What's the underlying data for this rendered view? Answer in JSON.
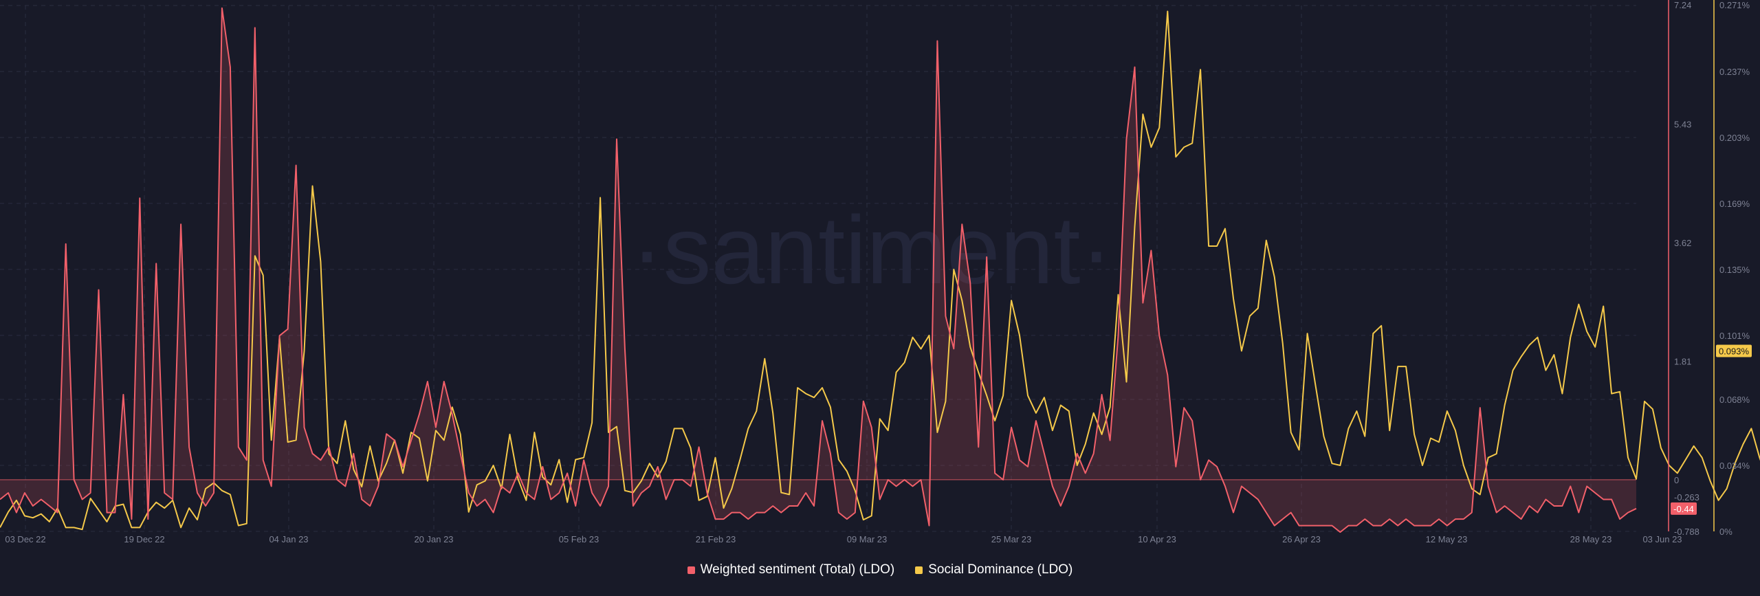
{
  "watermark": "·santiment·",
  "colors": {
    "background": "#181a28",
    "grid": "#2a2d40",
    "sentiment": "#f2606a",
    "dominance": "#f5c94a",
    "axis_text": "#7e8294"
  },
  "chart_data": {
    "type": "line",
    "x_tick_labels": [
      "03 Dec 22",
      "19 Dec 22",
      "04 Jan 23",
      "20 Jan 23",
      "05 Feb 23",
      "21 Feb 23",
      "09 Mar 23",
      "25 Mar 23",
      "10 Apr 23",
      "26 Apr 23",
      "12 May 23",
      "28 May 23",
      "03 Jun 23"
    ],
    "right_axis_sentiment": {
      "tick_labels": [
        "7.24",
        "5.43",
        "3.62",
        "1.81",
        "0",
        "-0.263",
        "-0.44",
        "-0.788"
      ],
      "ylim": [
        -0.788,
        7.24
      ],
      "current_value_label": "-0.44"
    },
    "right_axis_dominance": {
      "tick_labels": [
        "0.271%",
        "0.237%",
        "0.203%",
        "0.169%",
        "0.135%",
        "0.101%",
        "0.068%",
        "0.034%",
        "0%"
      ],
      "ylim": [
        0,
        0.271
      ],
      "current_value_label": "0.093%"
    },
    "series": [
      {
        "name": "Weighted sentiment (Total) (LDO)",
        "axis": "sentiment",
        "values": [
          -0.3,
          -0.2,
          -0.5,
          -0.2,
          -0.4,
          -0.3,
          -0.4,
          -0.5,
          3.6,
          0,
          -0.3,
          -0.2,
          2.9,
          -0.5,
          -0.5,
          1.3,
          -0.6,
          4.3,
          -0.6,
          3.3,
          -0.2,
          -0.3,
          3.9,
          0.5,
          -0.2,
          -0.4,
          -0.2,
          7.2,
          6.3,
          0.5,
          0.3,
          6.9,
          0.3,
          -0.1,
          2.2,
          2.3,
          4.8,
          0.8,
          0.4,
          0.3,
          0.5,
          0,
          -0.1,
          0.4,
          -0.3,
          -0.4,
          -0.1,
          0.7,
          0.6,
          0.2,
          0.6,
          1,
          1.5,
          0.8,
          1.5,
          1,
          0.4,
          -0.2,
          -0.4,
          -0.3,
          -0.5,
          -0.1,
          -0.2,
          0.1,
          -0.2,
          -0.3,
          0.2,
          -0.3,
          -0.2,
          0.1,
          -0.4,
          0.3,
          -0.2,
          -0.4,
          -0.1,
          5.2,
          2,
          -0.4,
          -0.2,
          -0.1,
          0.2,
          -0.3,
          0,
          0,
          -0.1,
          0.5,
          -0.2,
          -0.6,
          -0.6,
          -0.5,
          -0.5,
          -0.6,
          -0.5,
          -0.5,
          -0.4,
          -0.5,
          -0.4,
          -0.4,
          -0.2,
          -0.4,
          0.9,
          0.4,
          -0.5,
          -0.6,
          -0.5,
          1.2,
          0.8,
          -0.3,
          0,
          -0.1,
          0,
          -0.1,
          0,
          -0.7,
          6.7,
          2.5,
          2,
          3.9,
          3,
          0.5,
          3.4,
          0.1,
          0,
          0.8,
          0.3,
          0.2,
          0.9,
          0.4,
          -0.1,
          -0.4,
          -0.1,
          0.4,
          0.1,
          0.4,
          1.3,
          0.6,
          2.2,
          5.2,
          6.3,
          2.7,
          3.5,
          2.2,
          1.6,
          0.2,
          1.1,
          0.9,
          0,
          0.3,
          0.2,
          -0.1,
          -0.5,
          -0.1,
          -0.2,
          -0.3,
          -0.5,
          -0.7,
          -0.6,
          -0.5,
          -0.7,
          -0.7,
          -0.7,
          -0.7,
          -0.7,
          -0.8,
          -0.7,
          -0.7,
          -0.6,
          -0.7,
          -0.7,
          -0.6,
          -0.7,
          -0.6,
          -0.7,
          -0.7,
          -0.7,
          -0.6,
          -0.7,
          -0.6,
          -0.6,
          -0.5,
          1.1,
          -0.1,
          -0.5,
          -0.4,
          -0.5,
          -0.6,
          -0.4,
          -0.5,
          -0.3,
          -0.4,
          -0.4,
          -0.1,
          -0.5,
          -0.1,
          -0.2,
          -0.3,
          -0.3,
          -0.6,
          -0.5,
          -0.44
        ],
        "color": "#f2606a"
      },
      {
        "name": "Social Dominance (LDO)",
        "axis": "dominance",
        "values": [
          0.002,
          0.01,
          0.016,
          0.008,
          0.007,
          0.009,
          0.005,
          0.012,
          0.002,
          0.002,
          0.001,
          0.017,
          0.011,
          0.005,
          0.013,
          0.014,
          0.002,
          0.002,
          0.01,
          0.015,
          0.012,
          0.016,
          0.002,
          0.012,
          0.006,
          0.022,
          0.025,
          0.021,
          0.019,
          0.003,
          0.004,
          0.142,
          0.132,
          0.047,
          0.1,
          0.046,
          0.047,
          0.093,
          0.178,
          0.139,
          0.04,
          0.035,
          0.057,
          0.032,
          0.023,
          0.044,
          0.026,
          0.035,
          0.047,
          0.03,
          0.051,
          0.048,
          0.026,
          0.052,
          0.047,
          0.064,
          0.05,
          0.01,
          0.024,
          0.026,
          0.034,
          0.022,
          0.05,
          0.027,
          0.016,
          0.051,
          0.028,
          0.024,
          0.037,
          0.015,
          0.037,
          0.038,
          0.056,
          0.172,
          0.051,
          0.054,
          0.021,
          0.02,
          0.026,
          0.035,
          0.028,
          0.036,
          0.053,
          0.053,
          0.043,
          0.016,
          0.018,
          0.038,
          0.012,
          0.022,
          0.037,
          0.053,
          0.062,
          0.089,
          0.061,
          0.02,
          0.019,
          0.074,
          0.071,
          0.069,
          0.074,
          0.064,
          0.037,
          0.031,
          0.021,
          0.006,
          0.008,
          0.058,
          0.052,
          0.082,
          0.087,
          0.1,
          0.094,
          0.101,
          0.051,
          0.067,
          0.135,
          0.119,
          0.095,
          0.082,
          0.07,
          0.057,
          0.07,
          0.119,
          0.101,
          0.07,
          0.061,
          0.069,
          0.052,
          0.065,
          0.062,
          0.034,
          0.045,
          0.061,
          0.05,
          0.064,
          0.122,
          0.077,
          0.157,
          0.215,
          0.198,
          0.208,
          0.268,
          0.193,
          0.198,
          0.2,
          0.238,
          0.147,
          0.147,
          0.156,
          0.12,
          0.093,
          0.111,
          0.115,
          0.15,
          0.131,
          0.097,
          0.051,
          0.042,
          0.102,
          0.075,
          0.049,
          0.035,
          0.034,
          0.053,
          0.062,
          0.049,
          0.102,
          0.106,
          0.052,
          0.085,
          0.085,
          0.05,
          0.034,
          0.048,
          0.046,
          0.062,
          0.052,
          0.034,
          0.022,
          0.019,
          0.038,
          0.04,
          0.065,
          0.083,
          0.09,
          0.096,
          0.1,
          0.083,
          0.091,
          0.071,
          0.1,
          0.117,
          0.103,
          0.095,
          0.116,
          0.071,
          0.072,
          0.038,
          0.027,
          0.067,
          0.063,
          0.043,
          0.034,
          0.03,
          0.037,
          0.044,
          0.038,
          0.026,
          0.016,
          0.022,
          0.035,
          0.045,
          0.053,
          0.038,
          0.026,
          0.091,
          0.12,
          0.106,
          0.093
        ],
        "color": "#f5c94a"
      }
    ],
    "grid": true,
    "legend_position": "bottom-center"
  },
  "legend": {
    "items": [
      {
        "label": "Weighted sentiment (Total) (LDO)",
        "color": "#f2606a"
      },
      {
        "label": "Social Dominance (LDO)",
        "color": "#f5c94a"
      }
    ]
  }
}
